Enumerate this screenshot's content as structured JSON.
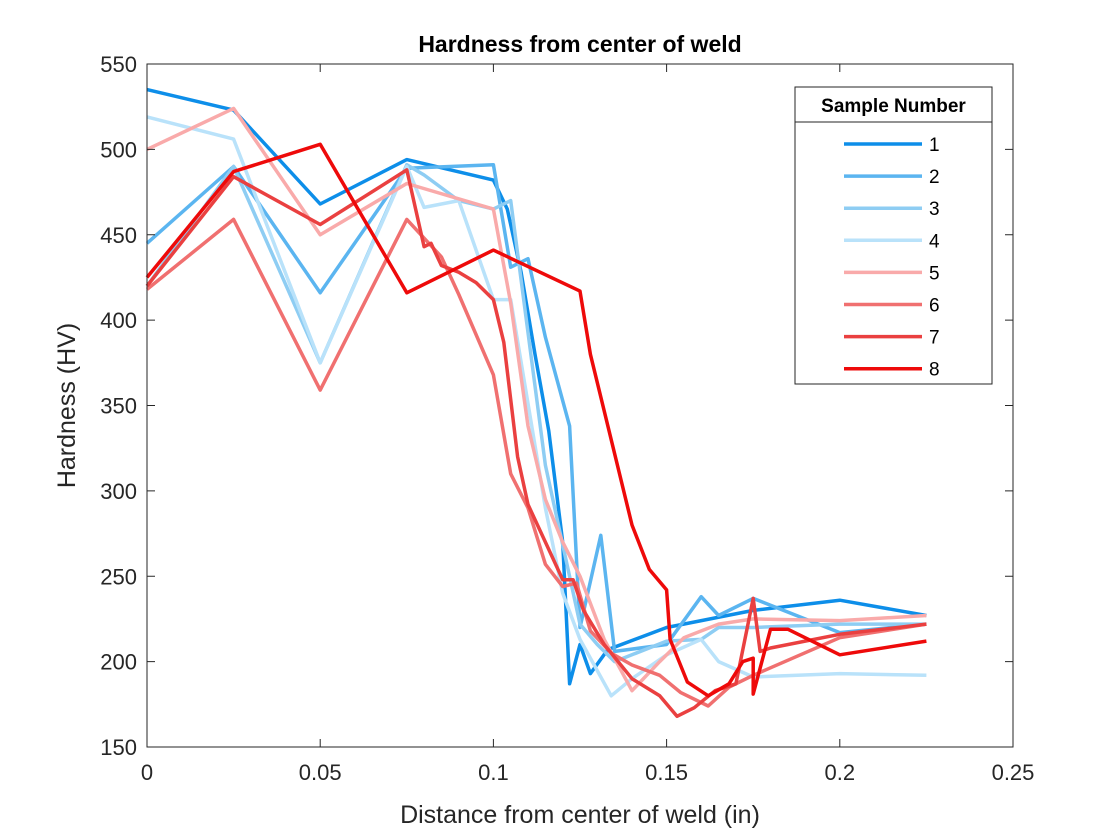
{
  "chart_data": {
    "type": "line",
    "title": "Hardness from center of weld",
    "xlabel": "Distance from center of weld (in)",
    "ylabel": "Hardness (HV)",
    "xlim": [
      0,
      0.25
    ],
    "ylim": [
      150,
      550
    ],
    "x_ticks": [
      0,
      0.05,
      0.1,
      0.15,
      0.2,
      0.25
    ],
    "x_tick_labels": [
      "0",
      "0.05",
      "0.1",
      "0.15",
      "0.2",
      "0.25"
    ],
    "y_ticks": [
      150,
      200,
      250,
      300,
      350,
      400,
      450,
      500,
      550
    ],
    "y_tick_labels": [
      "150",
      "200",
      "250",
      "300",
      "350",
      "400",
      "450",
      "500",
      "550"
    ],
    "grid": false,
    "legend": {
      "title": "Sample Number",
      "placement": "top-right"
    },
    "series": [
      {
        "name": "1",
        "color": "#0d8ee9",
        "x": [
          0,
          0.025,
          0.05,
          0.075,
          0.1,
          0.104,
          0.108,
          0.112,
          0.116,
          0.12,
          0.122,
          0.125,
          0.128,
          0.133,
          0.15,
          0.175,
          0.2,
          0.225
        ],
        "y": [
          535,
          523,
          468,
          494,
          482,
          465,
          428,
          380,
          335,
          270,
          187,
          210,
          193,
          207,
          220,
          230,
          236,
          227
        ]
      },
      {
        "name": "2",
        "color": "#5bb5f0",
        "x": [
          0,
          0.025,
          0.05,
          0.075,
          0.1,
          0.105,
          0.11,
          0.115,
          0.122,
          0.125,
          0.131,
          0.135,
          0.15,
          0.16,
          0.165,
          0.175,
          0.2,
          0.225
        ],
        "y": [
          445,
          490,
          416,
          489,
          491,
          431,
          436,
          390,
          338,
          220,
          274,
          206,
          210,
          238,
          227,
          237,
          217,
          222
        ]
      },
      {
        "name": "3",
        "color": "#8ecdf3",
        "x": [
          0,
          0.025,
          0.05,
          0.075,
          0.08,
          0.09,
          0.1,
          0.105,
          0.115,
          0.125,
          0.13,
          0.135,
          0.15,
          0.16,
          0.165,
          0.175,
          0.2,
          0.225
        ],
        "y": [
          420,
          490,
          375,
          491,
          485,
          470,
          465,
          470,
          315,
          222,
          210,
          200,
          212,
          213,
          220,
          220,
          222,
          222
        ]
      },
      {
        "name": "4",
        "color": "#b9e2fa",
        "x": [
          0,
          0.025,
          0.05,
          0.075,
          0.08,
          0.09,
          0.1,
          0.105,
          0.115,
          0.12,
          0.125,
          0.134,
          0.14,
          0.15,
          0.16,
          0.165,
          0.175,
          0.2,
          0.225
        ],
        "y": [
          519,
          506,
          375,
          490,
          466,
          470,
          412,
          412,
          290,
          240,
          213,
          180,
          190,
          204,
          213,
          200,
          191,
          193,
          192
        ]
      },
      {
        "name": "5",
        "color": "#f9aaaa",
        "x": [
          0,
          0.025,
          0.05,
          0.075,
          0.1,
          0.105,
          0.11,
          0.115,
          0.12,
          0.125,
          0.132,
          0.14,
          0.148,
          0.155,
          0.165,
          0.175,
          0.2,
          0.225
        ],
        "y": [
          500,
          524,
          450,
          480,
          465,
          410,
          338,
          295,
          270,
          250,
          213,
          183,
          200,
          214,
          222,
          225,
          224,
          227
        ]
      },
      {
        "name": "6",
        "color": "#f07070",
        "x": [
          0,
          0.025,
          0.05,
          0.075,
          0.085,
          0.09,
          0.1,
          0.105,
          0.11,
          0.115,
          0.12,
          0.124,
          0.128,
          0.134,
          0.14,
          0.148,
          0.154,
          0.162,
          0.168,
          0.175,
          0.2,
          0.225
        ],
        "y": [
          418,
          459,
          359,
          459,
          437,
          415,
          368,
          310,
          290,
          257,
          244,
          246,
          218,
          205,
          198,
          192,
          182,
          174,
          185,
          192,
          214,
          222
        ]
      },
      {
        "name": "7",
        "color": "#ea4040",
        "x": [
          0,
          0.025,
          0.05,
          0.075,
          0.08,
          0.082,
          0.085,
          0.09,
          0.095,
          0.1,
          0.103,
          0.107,
          0.11,
          0.115,
          0.12,
          0.123,
          0.126,
          0.132,
          0.14,
          0.148,
          0.153,
          0.158,
          0.164,
          0.17,
          0.175,
          0.177,
          0.18,
          0.2,
          0.225
        ],
        "y": [
          420,
          484,
          456,
          488,
          443,
          445,
          432,
          428,
          422,
          412,
          387,
          320,
          292,
          270,
          248,
          248,
          230,
          210,
          190,
          180,
          168,
          173,
          183,
          187,
          237,
          206,
          208,
          216,
          222
        ]
      },
      {
        "name": "8",
        "color": "#ee0a0a",
        "x": [
          0,
          0.025,
          0.05,
          0.075,
          0.1,
          0.125,
          0.128,
          0.14,
          0.145,
          0.15,
          0.151,
          0.156,
          0.162,
          0.168,
          0.172,
          0.175,
          0.175,
          0.18,
          0.185,
          0.2,
          0.225
        ],
        "y": [
          425,
          487,
          503,
          416,
          441,
          417,
          380,
          280,
          254,
          242,
          213,
          188,
          180,
          187,
          200,
          202,
          181,
          219,
          219,
          204,
          212
        ]
      }
    ]
  }
}
